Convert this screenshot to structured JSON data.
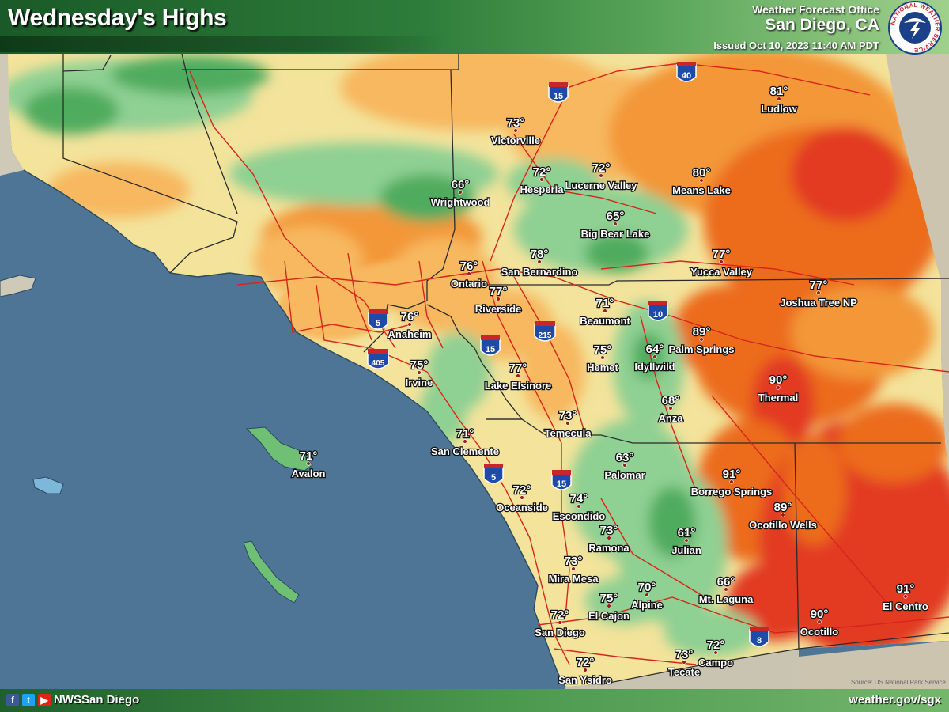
{
  "header": {
    "title": "Wednesday's Highs",
    "office_label": "Weather Forecast Office",
    "office_city": "San Diego, CA",
    "issued": "Issued Oct 10, 2023 11:40 AM PDT",
    "logo_text": "NATIONAL WEATHER SERVICE"
  },
  "legend_colors": {
    "ocean": "#4e7596",
    "temp_60s": "#4fac5e",
    "temp_upper60s": "#8fd093",
    "temp_low70s": "#f3e39b",
    "temp_mid70s": "#f7b85e",
    "temp_upper70s": "#f39738",
    "temp_low80s": "#ec6c1c",
    "temp_90s": "#e23a24",
    "terrain": "#cdc4b0"
  },
  "interstates": [
    {
      "number": "5"
    },
    {
      "number": "405"
    },
    {
      "number": "15"
    },
    {
      "number": "215"
    },
    {
      "number": "10"
    },
    {
      "number": "40"
    },
    {
      "number": "8"
    }
  ],
  "locations": [
    {
      "name": "Ludlow",
      "temp": "81°"
    },
    {
      "name": "Victorville",
      "temp": "73°"
    },
    {
      "name": "Hesperia",
      "temp": "72°"
    },
    {
      "name": "Lucerne Valley",
      "temp": "72°"
    },
    {
      "name": "Means Lake",
      "temp": "80°"
    },
    {
      "name": "Wrightwood",
      "temp": "66°"
    },
    {
      "name": "Big Bear Lake",
      "temp": "65°"
    },
    {
      "name": "Ontario",
      "temp": "76°"
    },
    {
      "name": "San Bernardino",
      "temp": "78°"
    },
    {
      "name": "Yucca Valley",
      "temp": "77°"
    },
    {
      "name": "Riverside",
      "temp": "77°"
    },
    {
      "name": "Joshua Tree NP",
      "temp": "77°"
    },
    {
      "name": "Beaumont",
      "temp": "71°"
    },
    {
      "name": "Anaheim",
      "temp": "76°"
    },
    {
      "name": "Palm Springs",
      "temp": "89°"
    },
    {
      "name": "Hemet",
      "temp": "75°"
    },
    {
      "name": "Idyllwild",
      "temp": "64°"
    },
    {
      "name": "Irvine",
      "temp": "75°"
    },
    {
      "name": "Lake Elsinore",
      "temp": "77°"
    },
    {
      "name": "Thermal",
      "temp": "90°"
    },
    {
      "name": "Anza",
      "temp": "68°"
    },
    {
      "name": "Temecula",
      "temp": "73°"
    },
    {
      "name": "San Clemente",
      "temp": "71°"
    },
    {
      "name": "Avalon",
      "temp": "71°"
    },
    {
      "name": "Palomar",
      "temp": "63°"
    },
    {
      "name": "Borrego Springs",
      "temp": "91°"
    },
    {
      "name": "Oceanside",
      "temp": "72°"
    },
    {
      "name": "Escondido",
      "temp": "74°"
    },
    {
      "name": "Ocotillo Wells",
      "temp": "89°"
    },
    {
      "name": "Ramona",
      "temp": "73°"
    },
    {
      "name": "Julian",
      "temp": "61°"
    },
    {
      "name": "Mira Mesa",
      "temp": "73°"
    },
    {
      "name": "Mt. Laguna",
      "temp": "66°"
    },
    {
      "name": "El Cajon",
      "temp": "75°"
    },
    {
      "name": "Alpine",
      "temp": "70°"
    },
    {
      "name": "El Centro",
      "temp": "91°"
    },
    {
      "name": "San Diego",
      "temp": "72°"
    },
    {
      "name": "Ocotillo",
      "temp": "90°"
    },
    {
      "name": "Tecate",
      "temp": "73°"
    },
    {
      "name": "Campo",
      "temp": "72°"
    },
    {
      "name": "San Ysidro",
      "temp": "72°"
    }
  ],
  "footer": {
    "social_handle": "NWSSan Diego",
    "website": "weather.gov/sgx",
    "facebook_icon": "f",
    "twitter_icon": "t",
    "youtube_icon": "▶"
  },
  "credit": "Source: US National Park Service"
}
